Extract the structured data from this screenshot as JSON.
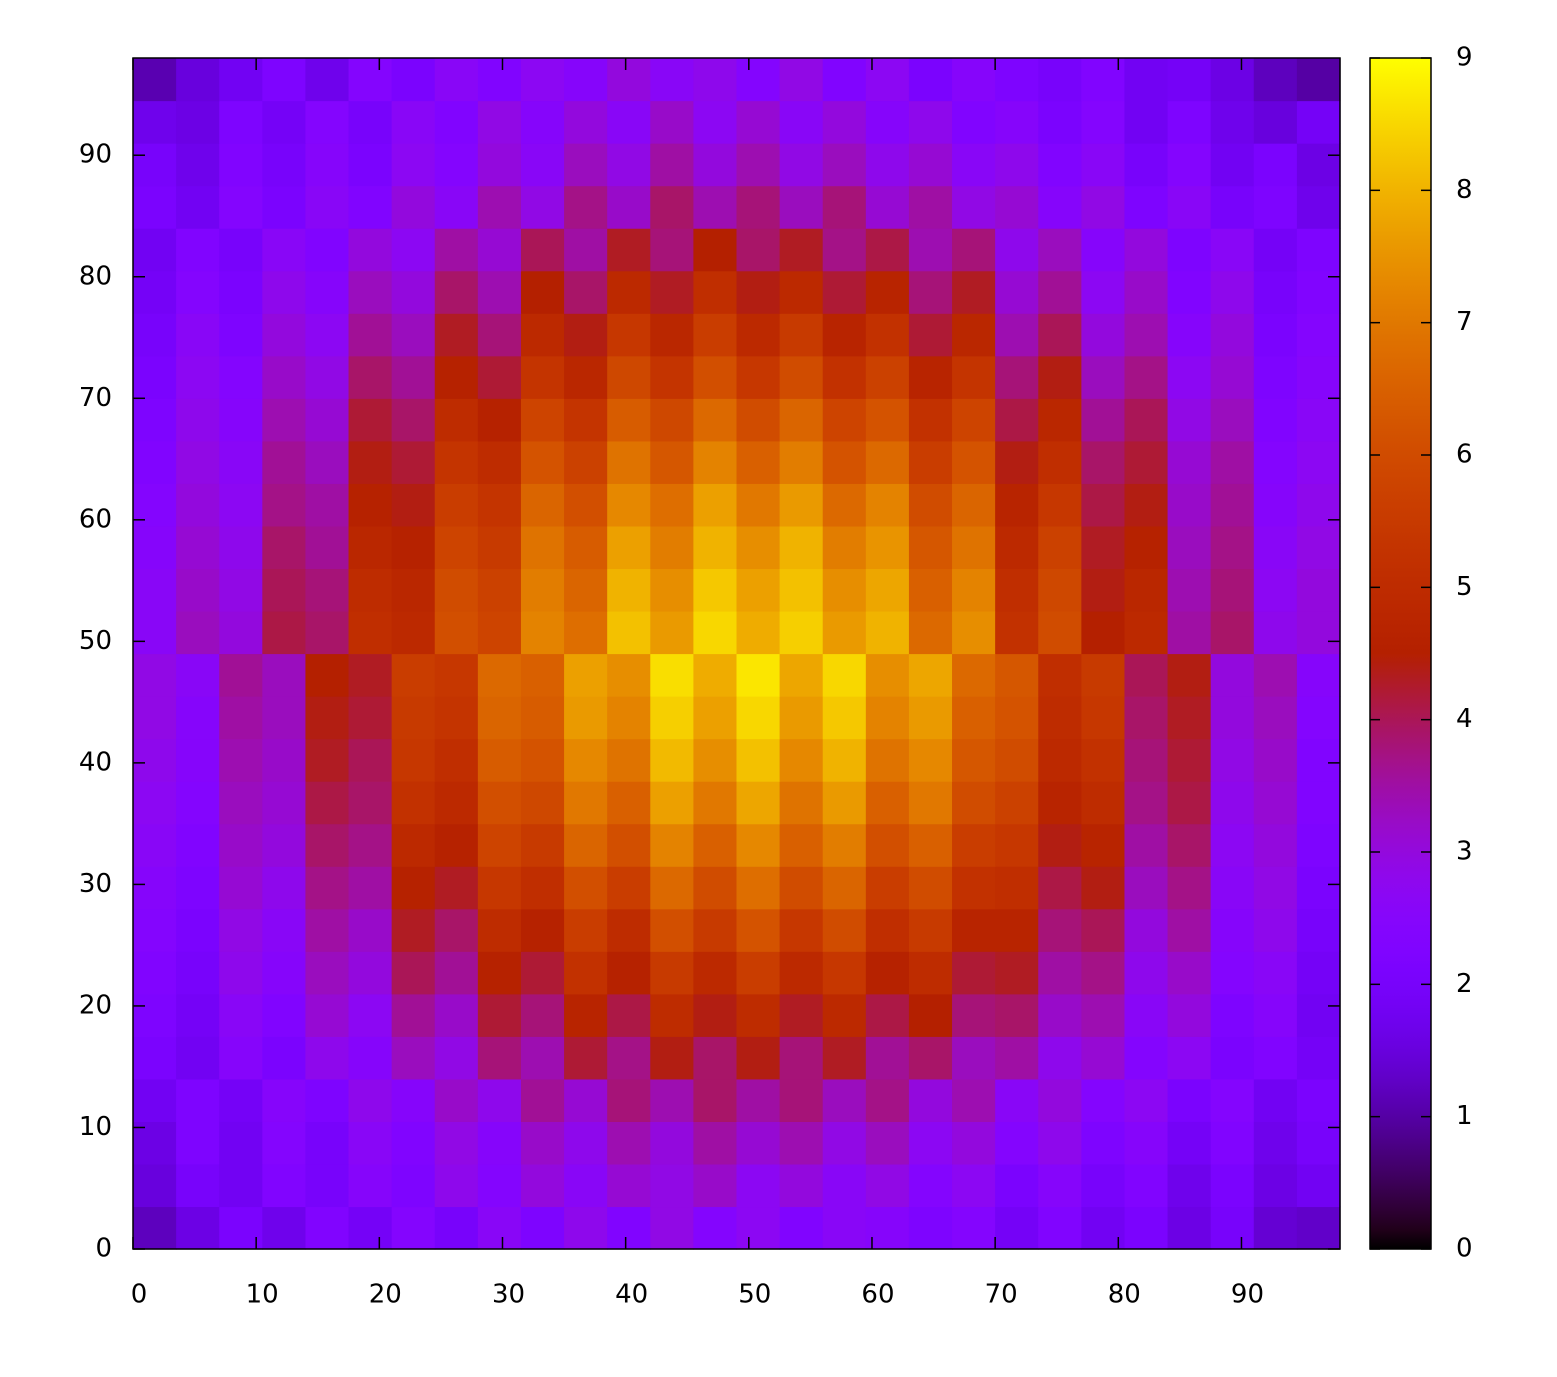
{
  "chart_data": {
    "type": "heatmap",
    "xlim": [
      0,
      98
    ],
    "ylim": [
      0,
      98
    ],
    "xticks": [
      0,
      10,
      20,
      30,
      40,
      50,
      60,
      70,
      80,
      90
    ],
    "yticks": [
      0,
      10,
      20,
      30,
      40,
      50,
      60,
      70,
      80,
      90
    ],
    "zlim": [
      0,
      9
    ],
    "zticks": [
      0,
      1,
      2,
      3,
      4,
      5,
      6,
      7,
      8,
      9
    ],
    "z": [
      [
        1.2,
        1.6,
        2.1,
        1.7,
        2.3,
        1.9,
        2.4,
        2.0,
        2.6,
        2.2,
        2.8,
        2.3,
        2.9,
        2.4,
        2.7,
        2.3,
        2.6,
        2.5,
        2.2,
        2.4,
        1.9,
        2.3,
        1.8,
        2.1,
        1.6,
        2.0,
        1.4,
        1.3
      ],
      [
        1.5,
        2.0,
        1.8,
        2.3,
        2.0,
        2.5,
        2.2,
        2.8,
        2.4,
        3.0,
        2.6,
        3.1,
        2.9,
        3.2,
        2.7,
        3.0,
        2.6,
        2.9,
        2.4,
        2.7,
        2.1,
        2.5,
        2.0,
        2.3,
        1.7,
        2.1,
        1.6,
        1.8
      ],
      [
        1.6,
        2.2,
        1.8,
        2.4,
        2.0,
        2.6,
        2.3,
        2.9,
        2.5,
        3.2,
        2.8,
        3.4,
        3.0,
        3.5,
        3.1,
        3.4,
        2.9,
        3.3,
        2.7,
        3.0,
        2.4,
        2.8,
        2.2,
        2.5,
        1.9,
        2.3,
        1.7,
        2.0
      ],
      [
        1.8,
        2.2,
        1.9,
        2.5,
        2.2,
        2.8,
        2.5,
        3.2,
        2.8,
        3.6,
        3.1,
        3.8,
        3.4,
        3.9,
        3.5,
        3.8,
        3.3,
        3.7,
        3.0,
        3.4,
        2.6,
        3.0,
        2.4,
        2.7,
        2.1,
        2.4,
        1.8,
        2.1
      ],
      [
        2.1,
        1.8,
        2.5,
        2.1,
        2.8,
        2.5,
        3.3,
        2.9,
        3.8,
        3.4,
        4.2,
        3.7,
        4.4,
        3.9,
        4.4,
        3.8,
        4.3,
        3.6,
        3.9,
        3.3,
        3.5,
        2.8,
        3.1,
        2.4,
        2.7,
        2.1,
        2.3,
        1.9
      ],
      [
        2.2,
        1.9,
        2.6,
        2.3,
        3.1,
        2.7,
        3.6,
        3.2,
        4.2,
        3.8,
        4.7,
        4.1,
        5.0,
        4.4,
        5.0,
        4.3,
        4.9,
        4.1,
        4.5,
        3.8,
        3.9,
        3.2,
        3.4,
        2.6,
        3.0,
        2.2,
        2.5,
        1.8
      ],
      [
        2.3,
        2.0,
        2.8,
        2.5,
        3.3,
        3.0,
        4.0,
        3.6,
        4.6,
        4.2,
        5.2,
        4.6,
        5.5,
        4.9,
        5.6,
        4.9,
        5.4,
        4.6,
        5.0,
        4.2,
        4.3,
        3.5,
        3.7,
        2.8,
        3.2,
        2.4,
        2.6,
        1.9
      ],
      [
        2.4,
        2.1,
        2.9,
        2.6,
        3.5,
        3.2,
        4.3,
        3.9,
        5.0,
        4.6,
        5.6,
        5.0,
        6.1,
        5.5,
        6.2,
        5.4,
        6.0,
        5.1,
        5.5,
        4.7,
        4.7,
        3.8,
        4.0,
        3.0,
        3.5,
        2.5,
        2.8,
        2.0
      ],
      [
        2.5,
        2.2,
        3.1,
        2.8,
        3.7,
        3.5,
        4.6,
        4.3,
        5.4,
        5.1,
        6.1,
        5.6,
        6.7,
        6.0,
        6.8,
        6.0,
        6.6,
        5.6,
        6.0,
        5.2,
        5.1,
        4.1,
        4.4,
        3.3,
        3.7,
        2.6,
        2.9,
        2.1
      ],
      [
        2.6,
        2.3,
        3.2,
        3.0,
        3.9,
        3.7,
        4.9,
        4.6,
        5.8,
        5.5,
        6.6,
        6.1,
        7.2,
        6.5,
        7.3,
        6.5,
        7.1,
        6.1,
        6.5,
        5.6,
        5.4,
        4.4,
        4.7,
        3.5,
        3.9,
        2.7,
        3.0,
        2.2
      ],
      [
        2.7,
        2.4,
        3.3,
        3.1,
        4.1,
        3.9,
        5.2,
        4.9,
        6.1,
        5.9,
        7.0,
        6.5,
        7.7,
        7.0,
        7.8,
        6.9,
        7.6,
        6.5,
        7.0,
        6.0,
        5.7,
        4.7,
        5.0,
        3.7,
        4.1,
        2.8,
        3.1,
        2.3
      ],
      [
        2.8,
        2.5,
        3.4,
        3.2,
        4.3,
        4.0,
        5.4,
        5.1,
        6.4,
        6.2,
        7.3,
        6.9,
        8.1,
        7.4,
        8.2,
        7.3,
        8.0,
        6.9,
        7.3,
        6.3,
        6.0,
        4.9,
        5.2,
        3.8,
        4.2,
        2.9,
        3.2,
        2.3
      ],
      [
        2.9,
        2.5,
        3.5,
        3.3,
        4.4,
        4.2,
        5.5,
        5.3,
        6.6,
        6.4,
        7.6,
        7.2,
        8.4,
        7.7,
        8.5,
        7.6,
        8.3,
        7.2,
        7.6,
        6.5,
        6.2,
        5.0,
        5.4,
        3.9,
        4.3,
        3.0,
        3.3,
        2.4
      ],
      [
        2.9,
        2.6,
        3.6,
        3.3,
        4.5,
        4.3,
        5.6,
        5.4,
        6.7,
        6.5,
        7.7,
        7.4,
        8.6,
        7.9,
        8.7,
        7.8,
        8.5,
        7.4,
        7.8,
        6.7,
        6.3,
        5.1,
        5.5,
        4.0,
        4.4,
        3.0,
        3.4,
        2.5
      ],
      [
        2.6,
        3.3,
        3.0,
        4.1,
        3.9,
        5.1,
        4.9,
        6.1,
        5.8,
        7.2,
        6.8,
        8.2,
        7.6,
        8.5,
        7.9,
        8.4,
        7.6,
        8.0,
        6.7,
        7.4,
        5.2,
        6.0,
        4.5,
        4.9,
        3.5,
        3.9,
        2.8,
        3.0
      ],
      [
        2.6,
        3.2,
        2.9,
        4.0,
        3.8,
        5.0,
        4.8,
        6.0,
        5.7,
        7.1,
        6.6,
        8.0,
        7.4,
        8.3,
        7.7,
        8.2,
        7.4,
        7.8,
        6.5,
        7.2,
        5.1,
        5.9,
        4.4,
        4.8,
        3.4,
        3.8,
        2.7,
        3.0
      ],
      [
        2.5,
        3.1,
        2.8,
        3.9,
        3.6,
        4.8,
        4.6,
        5.8,
        5.5,
        6.9,
        6.4,
        7.7,
        7.1,
        8.0,
        7.4,
        8.0,
        7.1,
        7.5,
        6.3,
        6.9,
        4.9,
        5.7,
        4.3,
        4.6,
        3.3,
        3.7,
        2.6,
        2.9
      ],
      [
        2.4,
        3.0,
        2.7,
        3.7,
        3.5,
        4.6,
        4.4,
        5.6,
        5.3,
        6.6,
        6.1,
        7.3,
        6.8,
        7.7,
        7.0,
        7.6,
        6.7,
        7.2,
        6.0,
        6.6,
        4.7,
        5.4,
        4.1,
        4.4,
        3.2,
        3.6,
        2.5,
        2.8
      ],
      [
        2.3,
        2.9,
        2.6,
        3.6,
        3.3,
        4.4,
        4.2,
        5.3,
        5.0,
        6.2,
        5.7,
        6.9,
        6.3,
        7.2,
        6.5,
        7.1,
        6.2,
        6.7,
        5.6,
        6.2,
        4.4,
        5.1,
        3.9,
        4.2,
        3.1,
        3.5,
        2.4,
        2.7
      ],
      [
        2.2,
        2.8,
        2.5,
        3.4,
        3.1,
        4.2,
        3.9,
        5.0,
        4.6,
        5.8,
        5.3,
        6.4,
        5.9,
        6.7,
        6.0,
        6.6,
        5.8,
        6.2,
        5.2,
        5.8,
        4.1,
        4.8,
        3.6,
        4.0,
        2.9,
        3.3,
        2.3,
        2.6
      ],
      [
        2.1,
        2.7,
        2.4,
        3.2,
        2.9,
        3.9,
        3.6,
        4.6,
        4.2,
        5.3,
        4.8,
        5.9,
        5.3,
        6.1,
        5.4,
        6.0,
        5.2,
        5.7,
        4.7,
        5.3,
        3.8,
        4.4,
        3.3,
        3.7,
        2.7,
        3.1,
        2.2,
        2.5
      ],
      [
        2.0,
        2.6,
        2.2,
        3.0,
        2.7,
        3.6,
        3.3,
        4.3,
        3.8,
        4.9,
        4.4,
        5.4,
        4.8,
        5.6,
        4.9,
        5.5,
        4.7,
        5.2,
        4.2,
        4.8,
        3.4,
        4.0,
        3.0,
        3.4,
        2.5,
        3.0,
        2.1,
        2.4
      ],
      [
        1.9,
        2.4,
        2.1,
        2.8,
        2.5,
        3.3,
        3.0,
        3.9,
        3.4,
        4.5,
        3.9,
        4.9,
        4.3,
        5.1,
        4.4,
        4.9,
        4.2,
        4.7,
        3.8,
        4.3,
        3.1,
        3.6,
        2.7,
        3.2,
        2.3,
        2.8,
        2.0,
        2.3
      ],
      [
        1.8,
        2.3,
        2.0,
        2.6,
        2.3,
        3.0,
        2.7,
        3.5,
        3.1,
        4.0,
        3.5,
        4.3,
        3.8,
        4.5,
        3.9,
        4.3,
        3.7,
        4.1,
        3.4,
        3.8,
        2.8,
        3.3,
        2.5,
        3.0,
        2.2,
        2.6,
        1.9,
        2.2
      ],
      [
        2.1,
        1.8,
        2.4,
        2.1,
        2.6,
        2.3,
        3.0,
        2.6,
        3.4,
        2.9,
        3.7,
        3.2,
        3.9,
        3.4,
        3.8,
        3.3,
        3.8,
        3.1,
        3.5,
        2.9,
        3.1,
        2.5,
        2.9,
        2.2,
        2.6,
        2.0,
        2.2,
        1.7
      ],
      [
        2.0,
        1.7,
        2.3,
        2.0,
        2.5,
        2.1,
        2.7,
        2.4,
        3.0,
        2.6,
        3.3,
        2.9,
        3.5,
        3.0,
        3.4,
        2.9,
        3.3,
        2.8,
        3.1,
        2.6,
        2.8,
        2.3,
        2.6,
        2.0,
        2.4,
        1.8,
        2.1,
        1.6
      ],
      [
        1.7,
        1.6,
        2.2,
        1.9,
        2.4,
        2.0,
        2.6,
        2.3,
        2.9,
        2.5,
        3.0,
        2.6,
        3.2,
        2.7,
        3.1,
        2.6,
        3.0,
        2.5,
        2.8,
        2.3,
        2.5,
        2.1,
        2.4,
        1.8,
        2.2,
        1.7,
        1.5,
        1.9
      ],
      [
        1.1,
        1.5,
        1.8,
        2.2,
        1.7,
        2.4,
        2.1,
        2.6,
        2.3,
        2.7,
        2.5,
        3.0,
        2.6,
        2.8,
        2.4,
        2.9,
        2.3,
        2.7,
        2.1,
        2.5,
        2.2,
        2.0,
        2.3,
        1.8,
        1.9,
        1.6,
        1.2,
        1.0
      ]
    ]
  }
}
